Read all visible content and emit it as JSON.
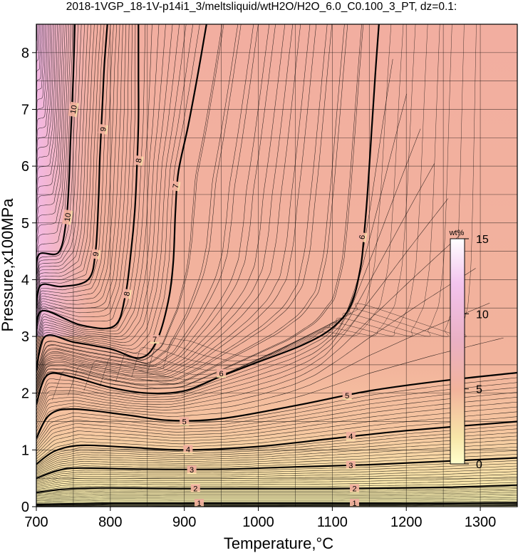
{
  "chart_data": {
    "type": "contour",
    "title": "2018-1VGP_18-1V-p14i1_3/meltsliquid/wtH2O/H2O_6.0_C0.100_3_PT, dz=0.1:",
    "xlabel": "Temperature,°C",
    "ylabel": "Pressure,x100MPa",
    "xlim": [
      700,
      1350
    ],
    "ylim": [
      0,
      8.5
    ],
    "xticks": [
      700,
      800,
      900,
      1000,
      1100,
      1200,
      1300
    ],
    "yticks": [
      0,
      1,
      2,
      3,
      4,
      5,
      6,
      7,
      8
    ],
    "grid": true,
    "z_variable": "wtH2O",
    "colorbar": {
      "unit": "wt%",
      "ticks": [
        0,
        5,
        10,
        15
      ],
      "range": [
        0,
        15
      ],
      "colors": {
        "low": "#ffffcc",
        "mid": "#f2b39c",
        "high": "#f0c0ee",
        "top": "#ffffff"
      },
      "placement": "inside-right"
    },
    "contours": [
      {
        "level": 1,
        "labels": [
          [
            920,
            0.06
          ],
          [
            1130,
            0.06
          ]
        ],
        "points": [
          [
            700,
            0.04
          ],
          [
            750,
            0.05
          ],
          [
            800,
            0.06
          ],
          [
            900,
            0.06
          ],
          [
            1000,
            0.06
          ],
          [
            1100,
            0.06
          ],
          [
            1200,
            0.06
          ],
          [
            1350,
            0.07
          ]
        ]
      },
      {
        "level": 2,
        "labels": [
          [
            915,
            0.32
          ],
          [
            1130,
            0.32
          ]
        ],
        "points": [
          [
            700,
            0.25
          ],
          [
            740,
            0.31
          ],
          [
            800,
            0.33
          ],
          [
            900,
            0.32
          ],
          [
            1000,
            0.32
          ],
          [
            1100,
            0.32
          ],
          [
            1250,
            0.34
          ],
          [
            1350,
            0.38
          ]
        ]
      },
      {
        "level": 3,
        "labels": [
          [
            910,
            0.65
          ],
          [
            1125,
            0.73
          ]
        ],
        "points": [
          [
            700,
            0.5
          ],
          [
            730,
            0.64
          ],
          [
            760,
            0.68
          ],
          [
            850,
            0.66
          ],
          [
            950,
            0.66
          ],
          [
            1050,
            0.7
          ],
          [
            1150,
            0.74
          ],
          [
            1250,
            0.8
          ],
          [
            1350,
            0.86
          ]
        ]
      },
      {
        "level": 4,
        "labels": [
          [
            905,
            1.01
          ],
          [
            1125,
            1.24
          ]
        ],
        "points": [
          [
            700,
            0.75
          ],
          [
            725,
            0.98
          ],
          [
            760,
            1.08
          ],
          [
            820,
            1.05
          ],
          [
            900,
            1.0
          ],
          [
            1000,
            1.06
          ],
          [
            1100,
            1.2
          ],
          [
            1200,
            1.34
          ],
          [
            1350,
            1.5
          ]
        ]
      },
      {
        "level": 5,
        "labels": [
          [
            900,
            1.5
          ],
          [
            1120,
            1.96
          ]
        ],
        "points": [
          [
            700,
            1.2
          ],
          [
            718,
            1.62
          ],
          [
            750,
            1.72
          ],
          [
            820,
            1.62
          ],
          [
            880,
            1.52
          ],
          [
            950,
            1.55
          ],
          [
            1050,
            1.78
          ],
          [
            1150,
            2.04
          ],
          [
            1250,
            2.22
          ],
          [
            1350,
            2.36
          ]
        ]
      },
      {
        "level": 6,
        "labels": [
          [
            950,
            2.35
          ],
          [
            1140,
            4.75
          ]
        ],
        "points": [
          [
            700,
            1.8
          ],
          [
            715,
            2.32
          ],
          [
            750,
            2.28
          ],
          [
            800,
            2.1
          ],
          [
            850,
            2.0
          ],
          [
            900,
            2.04
          ],
          [
            950,
            2.3
          ],
          [
            1000,
            2.55
          ],
          [
            1060,
            2.85
          ],
          [
            1100,
            3.15
          ],
          [
            1125,
            3.55
          ],
          [
            1138,
            4.2
          ],
          [
            1143,
            4.8
          ],
          [
            1148,
            5.6
          ],
          [
            1153,
            6.6
          ],
          [
            1158,
            7.6
          ],
          [
            1163,
            8.5
          ]
        ]
      },
      {
        "level": 7,
        "labels": [
          [
            860,
            2.95
          ],
          [
            888,
            5.65
          ]
        ],
        "points": [
          [
            700,
            2.4
          ],
          [
            712,
            3.0
          ],
          [
            750,
            2.9
          ],
          [
            800,
            2.78
          ],
          [
            840,
            2.62
          ],
          [
            862,
            2.9
          ],
          [
            878,
            3.6
          ],
          [
            885,
            4.3
          ],
          [
            888,
            5.2
          ],
          [
            892,
            5.9
          ],
          [
            905,
            6.7
          ],
          [
            918,
            7.6
          ],
          [
            930,
            8.5
          ]
        ]
      },
      {
        "level": 8,
        "labels": [
          [
            822,
            3.75
          ],
          [
            838,
            6.1
          ]
        ],
        "points": [
          [
            700,
            3.0
          ],
          [
            708,
            3.45
          ],
          [
            760,
            3.2
          ],
          [
            805,
            3.18
          ],
          [
            820,
            3.7
          ],
          [
            828,
            4.5
          ],
          [
            833,
            5.2
          ],
          [
            836,
            6.0
          ],
          [
            838,
            6.8
          ],
          [
            838,
            7.6
          ],
          [
            838,
            8.5
          ]
        ]
      },
      {
        "level": 9,
        "labels": [
          [
            780,
            4.45
          ],
          [
            790,
            6.65
          ]
        ],
        "points": [
          [
            700,
            3.5
          ],
          [
            706,
            3.9
          ],
          [
            735,
            3.88
          ],
          [
            770,
            4.0
          ],
          [
            780,
            4.5
          ],
          [
            784,
            5.4
          ],
          [
            786,
            6.2
          ],
          [
            789,
            7.0
          ],
          [
            792,
            7.8
          ],
          [
            796,
            8.5
          ]
        ]
      },
      {
        "level": 10,
        "labels": [
          [
            742,
            5.1
          ],
          [
            750,
            7.0
          ]
        ],
        "points": [
          [
            700,
            4.1
          ],
          [
            704,
            4.45
          ],
          [
            730,
            4.48
          ],
          [
            740,
            5.0
          ],
          [
            744,
            5.7
          ],
          [
            746,
            6.4
          ],
          [
            748,
            7.0
          ],
          [
            750,
            7.6
          ],
          [
            752,
            8.5
          ]
        ]
      }
    ]
  }
}
